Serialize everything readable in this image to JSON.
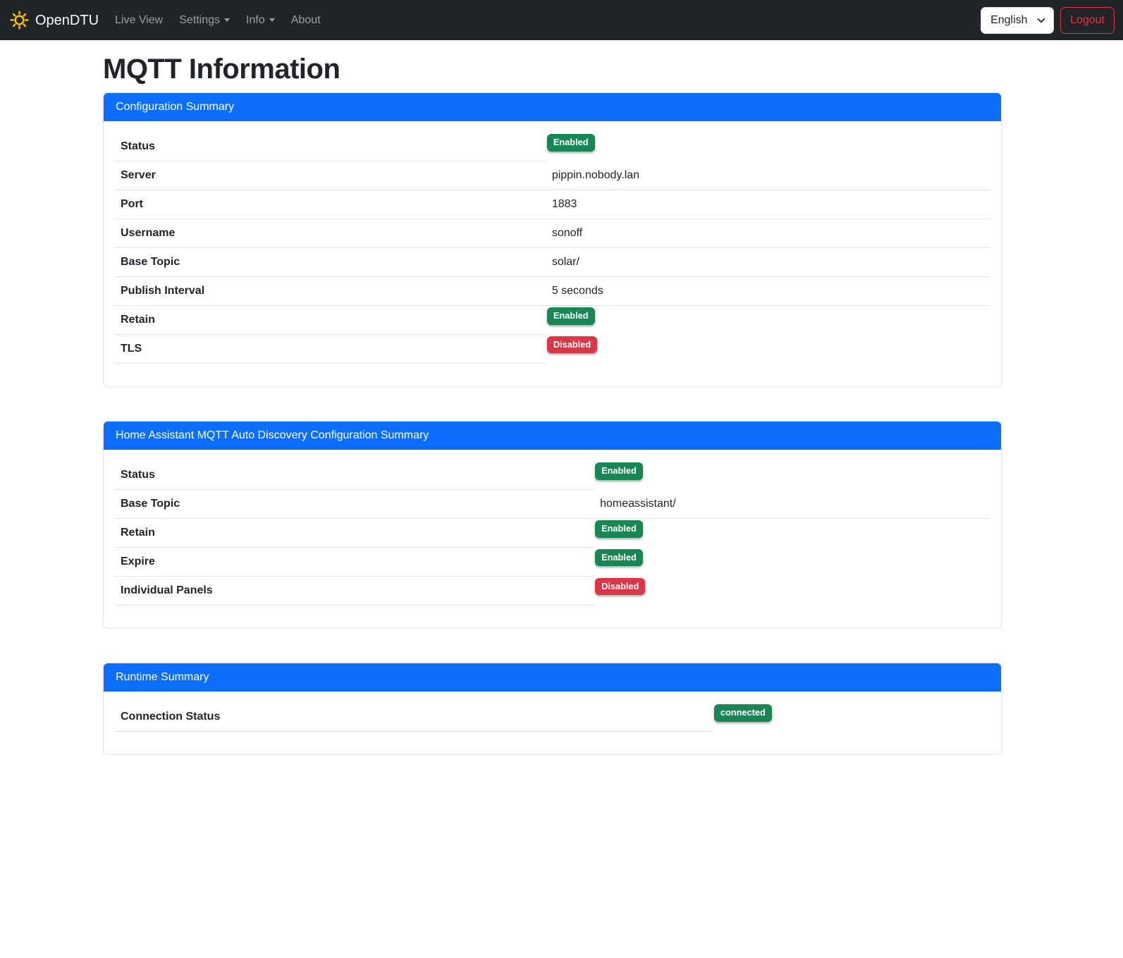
{
  "navbar": {
    "brand": "OpenDTU",
    "items": [
      {
        "label": "Live View",
        "dropdown": false
      },
      {
        "label": "Settings",
        "dropdown": true
      },
      {
        "label": "Info",
        "dropdown": true
      },
      {
        "label": "About",
        "dropdown": false
      }
    ],
    "language_selector": {
      "value": "English"
    },
    "logout_label": "Logout"
  },
  "page": {
    "title": "MQTT Information"
  },
  "cards": [
    {
      "title": "Configuration Summary",
      "rows": [
        {
          "label": "Status",
          "type": "badge",
          "value": "Enabled",
          "variant": "success"
        },
        {
          "label": "Server",
          "type": "text",
          "value": "pippin.nobody.lan"
        },
        {
          "label": "Port",
          "type": "text",
          "value": "1883"
        },
        {
          "label": "Username",
          "type": "text",
          "value": "sonoff"
        },
        {
          "label": "Base Topic",
          "type": "text",
          "value": "solar/"
        },
        {
          "label": "Publish Interval",
          "type": "text",
          "value": "5 seconds"
        },
        {
          "label": "Retain",
          "type": "badge",
          "value": "Enabled",
          "variant": "success"
        },
        {
          "label": "TLS",
          "type": "badge",
          "value": "Disabled",
          "variant": "danger"
        }
      ]
    },
    {
      "title": "Home Assistant MQTT Auto Discovery Configuration Summary",
      "rows": [
        {
          "label": "Status",
          "type": "badge",
          "value": "Enabled",
          "variant": "success"
        },
        {
          "label": "Base Topic",
          "type": "text",
          "value": "homeassistant/"
        },
        {
          "label": "Retain",
          "type": "badge",
          "value": "Enabled",
          "variant": "success"
        },
        {
          "label": "Expire",
          "type": "badge",
          "value": "Enabled",
          "variant": "success"
        },
        {
          "label": "Individual Panels",
          "type": "badge",
          "value": "Disabled",
          "variant": "danger"
        }
      ]
    },
    {
      "title": "Runtime Summary",
      "rows": [
        {
          "label": "Connection Status",
          "type": "badge",
          "value": "connected",
          "variant": "success"
        }
      ]
    }
  ],
  "colors": {
    "primary": "#0d6efd",
    "success": "#198754",
    "danger": "#dc3545",
    "navbar_bg": "#212529",
    "brand_icon": "#ffc107",
    "logout": "#dc3545",
    "table_border": "#dee2e6"
  }
}
